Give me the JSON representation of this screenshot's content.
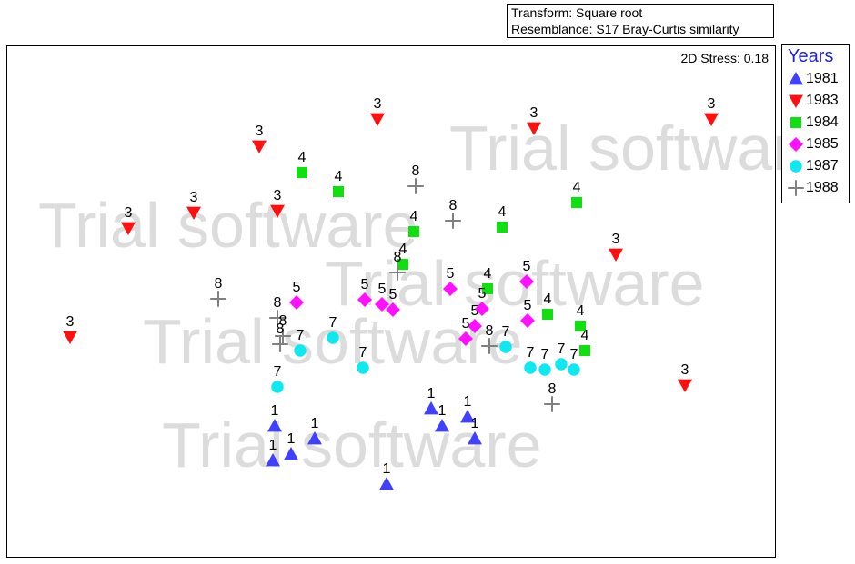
{
  "header": {
    "transform": "Transform: Square root",
    "resemblance": "Resemblance: S17 Bray-Curtis similarity"
  },
  "stress_label": "2D Stress: 0.18",
  "watermark": "Trial software",
  "legend": {
    "title": "Years",
    "items": [
      {
        "label": "1981",
        "shape": "triangle-up",
        "color": "#4040ff"
      },
      {
        "label": "1983",
        "shape": "triangle-down",
        "color": "#ff1010"
      },
      {
        "label": "1984",
        "shape": "square",
        "color": "#10e010"
      },
      {
        "label": "1985",
        "shape": "diamond",
        "color": "#ff10ff"
      },
      {
        "label": "1987",
        "shape": "circle",
        "color": "#10e8f0"
      },
      {
        "label": "1988",
        "shape": "plus",
        "color": "#808080"
      }
    ]
  },
  "chart_data": {
    "type": "scatter",
    "title": "",
    "xlabel": "",
    "ylabel": "",
    "grid": false,
    "legend_placement": "right",
    "series": [
      {
        "name": "1981",
        "label": "1",
        "points": [
          [
            302,
            -469
          ],
          [
            300,
            -507
          ],
          [
            320,
            -500
          ],
          [
            346,
            -483
          ],
          [
            425,
            -533
          ],
          [
            474,
            -450
          ],
          [
            486,
            -469
          ],
          [
            514,
            -459
          ],
          [
            522,
            -483
          ]
        ]
      },
      {
        "name": "1983",
        "label": "3",
        "points": [
          [
            77,
            -371
          ],
          [
            141,
            -251
          ],
          [
            213,
            -234
          ],
          [
            285,
            -161
          ],
          [
            305,
            -232
          ],
          [
            415,
            -131
          ],
          [
            587,
            -141
          ],
          [
            677,
            -280
          ],
          [
            782,
            -131
          ],
          [
            753,
            -424
          ]
        ]
      },
      {
        "name": "1984",
        "label": "4",
        "points": [
          [
            332,
            -190
          ],
          [
            372,
            -211
          ],
          [
            455,
            -255
          ],
          [
            443,
            -291
          ],
          [
            536,
            -318
          ],
          [
            552,
            -250
          ],
          [
            634,
            -223
          ],
          [
            602,
            -346
          ],
          [
            638,
            -359
          ],
          [
            643,
            -386
          ]
        ]
      },
      {
        "name": "1985",
        "label": "5",
        "points": [
          [
            326,
            -333
          ],
          [
            401,
            -330
          ],
          [
            420,
            -335
          ],
          [
            432,
            -341
          ],
          [
            495,
            -318
          ],
          [
            522,
            -359
          ],
          [
            512,
            -373
          ],
          [
            530,
            -340
          ],
          [
            579,
            -310
          ],
          [
            580,
            -353
          ]
        ]
      },
      {
        "name": "1987",
        "label": "7",
        "points": [
          [
            305,
            -426
          ],
          [
            330,
            -386
          ],
          [
            366,
            -372
          ],
          [
            399,
            -405
          ],
          [
            556,
            -382
          ],
          [
            583,
            -405
          ],
          [
            599,
            -407
          ],
          [
            617,
            -401
          ],
          [
            631,
            -407
          ]
        ]
      },
      {
        "name": "1988",
        "label": "8",
        "points": [
          [
            240,
            -329
          ],
          [
            305,
            -350
          ],
          [
            311,
            -370
          ],
          [
            308,
            -379
          ],
          [
            437,
            -300
          ],
          [
            457,
            -205
          ],
          [
            498,
            -243
          ],
          [
            538,
            -381
          ],
          [
            607,
            -445
          ]
        ]
      }
    ]
  }
}
